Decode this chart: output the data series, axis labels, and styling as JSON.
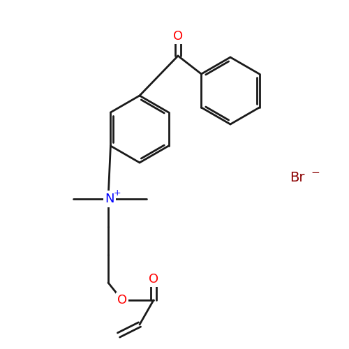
{
  "title": "",
  "bg_color": "#ffffff",
  "bond_color": "#1a1a1a",
  "bond_width": 2.0,
  "atom_colors": {
    "O": "#ff0000",
    "N": "#0000ff",
    "Br": "#8b0000",
    "C": "#1a1a1a"
  },
  "font_size_atom": 13,
  "font_size_charge": 10,
  "figsize": [
    5.0,
    5.0
  ],
  "dpi": 100
}
